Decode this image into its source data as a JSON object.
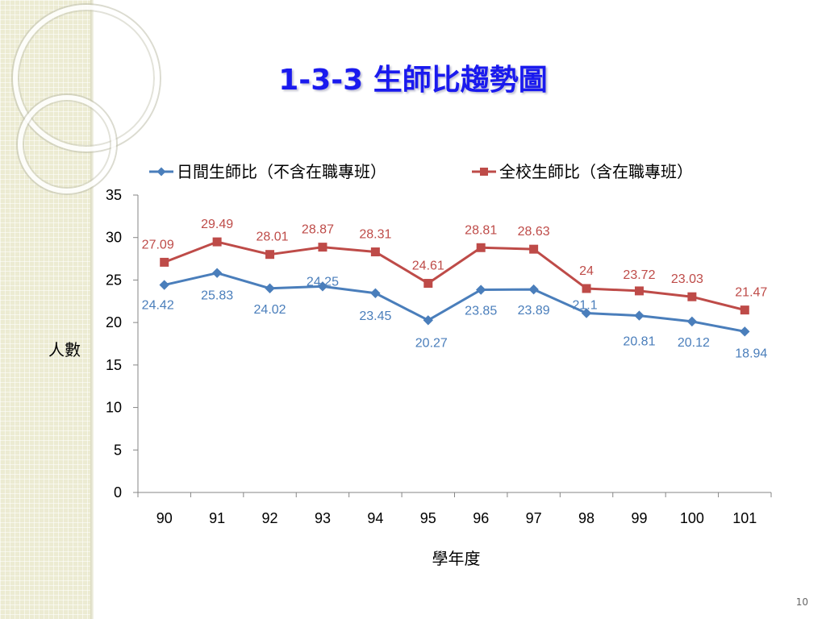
{
  "slide": {
    "title": "1-3-3 生師比趨勢圖",
    "page_number": "10"
  },
  "colors": {
    "series1": "#4a7ebb",
    "series2": "#be4b48",
    "axis": "#868686",
    "title": "#1a1aee"
  },
  "chart_data": {
    "type": "line",
    "title": "",
    "xlabel": "學年度",
    "ylabel": "人數",
    "categories": [
      "90",
      "91",
      "92",
      "93",
      "94",
      "95",
      "96",
      "97",
      "98",
      "99",
      "100",
      "101"
    ],
    "ylim": [
      0,
      35
    ],
    "yticks": [
      0,
      5,
      10,
      15,
      20,
      25,
      30,
      35
    ],
    "grid": false,
    "legend_position": "top",
    "series": [
      {
        "name": "日間生師比（不含在職專班）",
        "marker": "diamond",
        "values": [
          24.42,
          25.83,
          24.02,
          24.25,
          23.45,
          20.27,
          23.85,
          23.89,
          21.1,
          20.81,
          20.12,
          18.94
        ],
        "labels": [
          "24.42",
          "25.83",
          "24.02",
          "24.25",
          "23.45",
          "20.27",
          "23.85",
          "23.89",
          "21.1",
          "20.81",
          "20.12",
          "18.94"
        ]
      },
      {
        "name": "全校生師比（含在職專班）",
        "marker": "square",
        "values": [
          27.09,
          29.49,
          28.01,
          28.87,
          28.31,
          24.61,
          28.81,
          28.63,
          24,
          23.72,
          23.03,
          21.47
        ],
        "labels": [
          "27.09",
          "29.49",
          "28.01",
          "28.87",
          "28.31",
          "24.61",
          "28.81",
          "28.63",
          "24",
          "23.72",
          "23.03",
          "21.47"
        ]
      }
    ]
  }
}
